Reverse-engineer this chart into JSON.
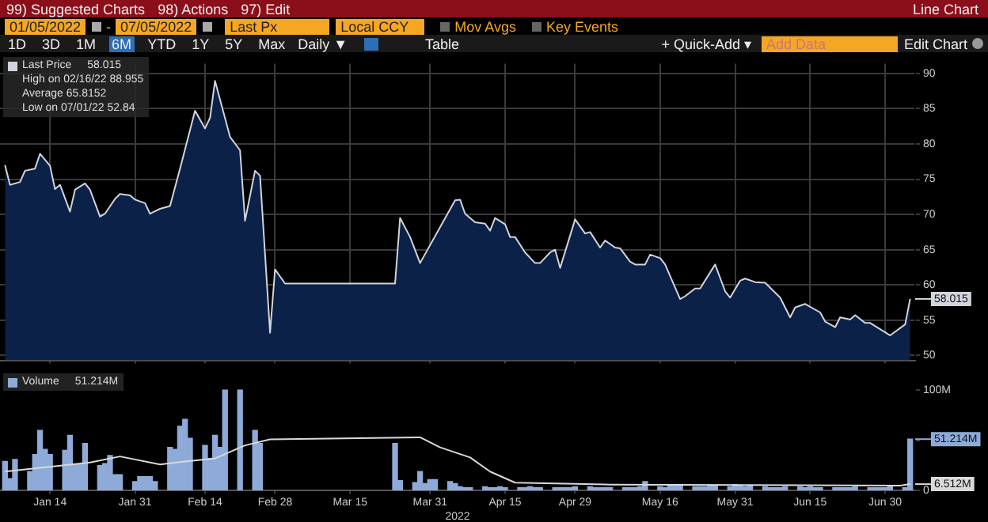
{
  "chart_data": [
    {
      "type": "other",
      "annotations": [
        "99) Suggested Charts",
        "98) Actions",
        "97) Edit",
        "Line Chart",
        "01/05/2022",
        "-",
        "07/05/2022",
        "Last Px",
        "Local CCY",
        "Mov Avgs",
        "Key Events",
        "1D",
        "3D",
        "1M",
        "6M",
        "YTD",
        "1Y",
        "5Y",
        "Max",
        "Daily ▼",
        "Table",
        "+ Quick-Add ▾",
        "Add Data",
        "Edit Chart"
      ]
    },
    {
      "type": "area",
      "legend": "top left",
      "grid": true,
      "marker": "none",
      "tick_labels": "y",
      "xlim": [
        "2022-01-04",
        "2022-07-06"
      ],
      "ylim": [
        49.3,
        91.4
      ],
      "xticks": [
        "2022-01-14",
        "2022-01-31",
        "2022-02-14",
        "2022-02-28",
        "2022-03-15",
        "2022-03-31",
        "2022-04-15",
        "2022-04-29",
        "2022-05-16",
        "2022-05-31",
        "2022-06-15",
        "2022-06-30"
      ],
      "yticks": [
        50,
        55,
        60,
        65,
        70,
        75,
        80,
        85,
        90
      ],
      "annotations": [
        "58.015",
        "High on 02/16/22 88.955",
        "Average 65.8152",
        "Low on 07/01/22 52.84",
        "58.015"
      ],
      "series": [
        {
          "type": "area",
          "name": "Last Price",
          "color": "#d0d4dc",
          "x": [
            "2022-01-05",
            "2022-01-06",
            "2022-01-08",
            "2022-01-09",
            "2022-01-11",
            "2022-01-12",
            "2022-01-14",
            "2022-01-15",
            "2022-01-16",
            "2022-01-18",
            "2022-01-19",
            "2022-01-21",
            "2022-01-22",
            "2022-01-24",
            "2022-01-25",
            "2022-01-27",
            "2022-01-28",
            "2022-01-30",
            "2022-01-31",
            "2022-02-02",
            "2022-02-03",
            "2022-02-05",
            "2022-02-07",
            "2022-02-09",
            "2022-02-12",
            "2022-02-14",
            "2022-02-15",
            "2022-02-16",
            "2022-02-19",
            "2022-02-21",
            "2022-02-22",
            "2022-02-24",
            "2022-02-25",
            "2022-02-27",
            "2022-02-28",
            "2022-03-02",
            "2022-03-24",
            "2022-03-25",
            "2022-03-27",
            "2022-03-29",
            "2022-04-02",
            "2022-04-05",
            "2022-04-06",
            "2022-04-07",
            "2022-04-09",
            "2022-04-11",
            "2022-04-12",
            "2022-04-13",
            "2022-04-15",
            "2022-04-16",
            "2022-04-17",
            "2022-04-19",
            "2022-04-21",
            "2022-04-22",
            "2022-04-24",
            "2022-04-25",
            "2022-04-26",
            "2022-04-29",
            "2022-05-01",
            "2022-05-02",
            "2022-05-04",
            "2022-05-05",
            "2022-05-07",
            "2022-05-08",
            "2022-05-10",
            "2022-05-11",
            "2022-05-13",
            "2022-05-14",
            "2022-05-16",
            "2022-05-17",
            "2022-05-20",
            "2022-05-21",
            "2022-05-23",
            "2022-05-24",
            "2022-05-27",
            "2022-05-29",
            "2022-05-30",
            "2022-06-01",
            "2022-06-02",
            "2022-06-04",
            "2022-06-06",
            "2022-06-09",
            "2022-06-11",
            "2022-06-12",
            "2022-06-14",
            "2022-06-17",
            "2022-06-18",
            "2022-06-20",
            "2022-06-21",
            "2022-06-23",
            "2022-06-24",
            "2022-06-26",
            "2022-06-27",
            "2022-07-01",
            "2022-07-04",
            "2022-07-05"
          ],
          "values": [
            77.0,
            74.2,
            74.6,
            76.2,
            76.5,
            78.6,
            76.9,
            73.6,
            74.2,
            70.4,
            73.5,
            74.4,
            73.5,
            69.7,
            70.1,
            72.2,
            72.9,
            72.7,
            72.1,
            71.6,
            70.1,
            70.8,
            71.2,
            76.5,
            84.7,
            82.2,
            83.7,
            88.955,
            81.0,
            79.1,
            69.1,
            76.2,
            75.5,
            53.2,
            62.2,
            60.2,
            60.2,
            69.5,
            66.8,
            63.1,
            68.2,
            72.0,
            72.1,
            70.1,
            68.9,
            68.7,
            67.7,
            69.5,
            68.6,
            66.8,
            66.8,
            64.6,
            63.1,
            63.1,
            64.6,
            65.0,
            62.4,
            69.3,
            67.3,
            67.5,
            65.3,
            66.3,
            65.3,
            65.2,
            63.3,
            62.9,
            62.9,
            64.3,
            63.8,
            62.9,
            58.0,
            58.4,
            59.5,
            59.5,
            62.9,
            59.1,
            58.2,
            60.6,
            60.9,
            60.4,
            60.3,
            58.2,
            55.4,
            56.8,
            57.3,
            56.1,
            54.8,
            54.0,
            55.4,
            55.1,
            55.7,
            54.6,
            54.6,
            52.84,
            54.4,
            58.015
          ]
        }
      ]
    },
    {
      "type": "bar",
      "legend": "top left",
      "marker": "none",
      "xlabel": "2022",
      "xlim": [
        "2022-01-04",
        "2022-07-06"
      ],
      "ylim": [
        0,
        110
      ],
      "xticks": [
        {
          "value": "2022-01-14",
          "label": "Jan 14"
        },
        {
          "value": "2022-01-31",
          "label": "Jan 31"
        },
        {
          "value": "2022-02-14",
          "label": "Feb 14"
        },
        {
          "value": "2022-02-28",
          "label": "Feb 28"
        },
        {
          "value": "2022-03-15",
          "label": "Mar 15"
        },
        {
          "value": "2022-03-31",
          "label": "Mar 31"
        },
        {
          "value": "2022-04-15",
          "label": "Apr 15"
        },
        {
          "value": "2022-04-29",
          "label": "Apr 29"
        },
        {
          "value": "2022-05-16",
          "label": "May 16"
        },
        {
          "value": "2022-05-31",
          "label": "May 31"
        },
        {
          "value": "2022-06-15",
          "label": "Jun 15"
        },
        {
          "value": "2022-06-30",
          "label": "Jun 30"
        }
      ],
      "yticks": [
        {
          "value": 0,
          "label": "0"
        },
        {
          "value": 50,
          "label": null
        },
        {
          "value": 100,
          "label": "100M"
        }
      ],
      "annotations": [
        "51.214M",
        "51.214M",
        "6.512M"
      ],
      "series": [
        {
          "type": "bar",
          "name": "Volume",
          "color": "#8eaad8",
          "x": [
            "2022-01-05",
            "2022-01-06",
            "2022-01-07",
            "2022-01-10",
            "2022-01-11",
            "2022-01-12",
            "2022-01-13",
            "2022-01-14",
            "2022-01-17",
            "2022-01-18",
            "2022-01-19",
            "2022-01-20",
            "2022-01-21",
            "2022-01-24",
            "2022-01-25",
            "2022-01-26",
            "2022-01-27",
            "2022-01-28",
            "2022-01-31",
            "2022-02-01",
            "2022-02-02",
            "2022-02-03",
            "2022-02-04",
            "2022-02-07",
            "2022-02-08",
            "2022-02-09",
            "2022-02-10",
            "2022-02-11",
            "2022-02-14",
            "2022-02-15",
            "2022-02-16",
            "2022-02-17",
            "2022-02-18",
            "2022-02-21",
            "2022-02-24",
            "2022-02-25",
            "2022-03-24",
            "2022-03-25",
            "2022-03-28",
            "2022-03-29",
            "2022-03-30",
            "2022-03-31",
            "2022-04-01",
            "2022-04-04",
            "2022-04-05",
            "2022-04-06",
            "2022-04-07",
            "2022-04-08",
            "2022-04-11",
            "2022-04-12",
            "2022-04-13",
            "2022-04-14",
            "2022-04-15",
            "2022-04-18",
            "2022-04-19",
            "2022-04-20",
            "2022-04-21",
            "2022-04-22",
            "2022-04-25",
            "2022-04-26",
            "2022-04-27",
            "2022-04-28",
            "2022-04-29",
            "2022-05-02",
            "2022-05-03",
            "2022-05-04",
            "2022-05-05",
            "2022-05-06",
            "2022-05-09",
            "2022-05-10",
            "2022-05-11",
            "2022-05-12",
            "2022-05-13",
            "2022-05-16",
            "2022-05-17",
            "2022-05-18",
            "2022-05-19",
            "2022-05-20",
            "2022-05-23",
            "2022-05-24",
            "2022-05-25",
            "2022-05-26",
            "2022-05-27",
            "2022-05-30",
            "2022-05-31",
            "2022-06-01",
            "2022-06-02",
            "2022-06-03",
            "2022-06-06",
            "2022-06-07",
            "2022-06-08",
            "2022-06-09",
            "2022-06-10",
            "2022-06-13",
            "2022-06-14",
            "2022-06-15",
            "2022-06-16",
            "2022-06-17",
            "2022-06-20",
            "2022-06-21",
            "2022-06-22",
            "2022-06-23",
            "2022-06-24",
            "2022-06-27",
            "2022-06-28",
            "2022-06-29",
            "2022-06-30",
            "2022-07-01",
            "2022-07-04",
            "2022-07-05"
          ],
          "values": [
            29,
            12,
            31,
            19,
            36,
            60,
            41,
            36,
            40,
            55,
            26,
            26,
            47,
            25,
            27,
            35,
            16,
            16,
            9,
            14,
            14,
            14,
            9,
            43,
            41,
            64,
            71,
            52,
            45,
            32,
            55,
            43,
            100,
            100,
            60,
            47,
            47,
            10,
            8,
            19,
            7,
            11,
            11,
            9,
            7,
            4,
            3,
            3,
            4,
            3,
            3,
            4,
            3,
            3,
            3,
            4,
            3,
            3,
            3,
            3,
            3,
            3,
            4,
            4,
            3,
            3,
            3,
            3,
            3,
            3,
            3,
            4,
            9,
            4,
            3,
            5,
            5,
            5,
            4,
            4,
            4,
            5,
            5,
            4,
            6,
            5,
            4,
            5,
            4,
            3,
            3,
            3,
            4,
            4,
            3,
            4,
            3,
            3,
            3,
            3,
            3,
            3,
            4,
            3,
            3,
            3,
            3,
            5,
            3,
            51.214
          ]
        },
        {
          "type": "line",
          "color": "#d9d9d9",
          "x": [
            "2022-01-05",
            "2022-01-22",
            "2022-01-28",
            "2022-02-05",
            "2022-02-10",
            "2022-02-16",
            "2022-02-22",
            "2022-02-27",
            "2022-03-29",
            "2022-04-02",
            "2022-04-08",
            "2022-04-12",
            "2022-04-17",
            "2022-05-06",
            "2022-07-03",
            "2022-07-05"
          ],
          "values": [
            19,
            28,
            34,
            26,
            29,
            32,
            45,
            51,
            53,
            43,
            33,
            19,
            8,
            6,
            5,
            6.512
          ]
        }
      ]
    }
  ]
}
